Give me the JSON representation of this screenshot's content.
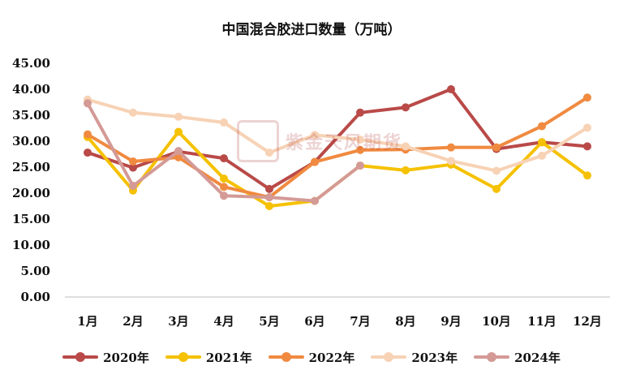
{
  "chart_data": {
    "type": "line",
    "title": "中国混合胶进口数量（万吨）",
    "categories": [
      "1月",
      "2月",
      "3月",
      "4月",
      "5月",
      "6月",
      "7月",
      "8月",
      "9月",
      "10月",
      "11月",
      "12月"
    ],
    "ylim": [
      0,
      45
    ],
    "yticks": [
      "0.00",
      "5.00",
      "10.00",
      "15.00",
      "20.00",
      "25.00",
      "30.00",
      "35.00",
      "40.00",
      "45.00"
    ],
    "grid": false,
    "legend_position": "bottom",
    "series": [
      {
        "name": "2020年",
        "color": "#b94a48",
        "values": [
          27.8,
          24.9,
          28.0,
          26.7,
          20.8,
          26.0,
          35.5,
          36.5,
          40.0,
          28.5,
          29.8,
          29.0
        ]
      },
      {
        "name": "2021年",
        "color": "#f5c100",
        "values": [
          30.8,
          20.5,
          31.8,
          22.8,
          17.5,
          18.5,
          25.3,
          24.4,
          25.5,
          20.8,
          29.8,
          23.4
        ]
      },
      {
        "name": "2022年",
        "color": "#f08a40",
        "values": [
          31.3,
          26.1,
          26.9,
          21.2,
          19.2,
          26.0,
          28.3,
          28.4,
          28.8,
          28.8,
          32.9,
          38.4
        ]
      },
      {
        "name": "2023年",
        "color": "#f7d2b5",
        "values": [
          38.0,
          35.5,
          34.7,
          33.6,
          27.8,
          31.2,
          30.3,
          29.0,
          26.2,
          24.3,
          27.2,
          32.6
        ]
      },
      {
        "name": "2024年",
        "color": "#d49a96",
        "values": [
          37.3,
          21.4,
          28.1,
          19.5,
          19.2,
          18.5,
          25.3,
          null,
          null,
          null,
          null,
          null
        ]
      }
    ]
  },
  "watermark": {
    "seal": "紫金",
    "text": "紫金天风期货"
  }
}
